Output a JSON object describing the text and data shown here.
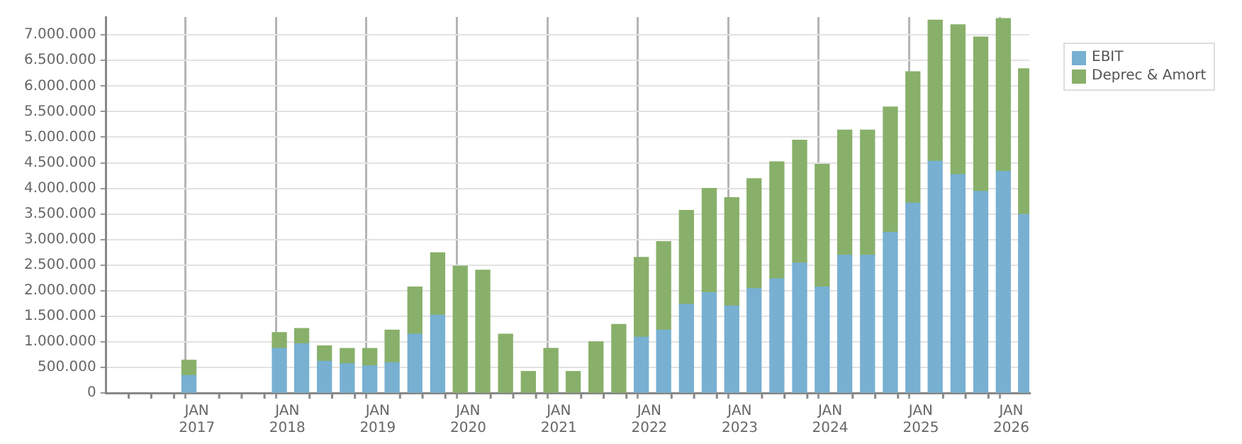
{
  "chart_data": {
    "type": "bar",
    "stacked": true,
    "grid": true,
    "legend": "top right",
    "x": [
      "2016-11-30",
      "2017-11-30",
      "2018-02-28",
      "2018-05-31",
      "2018-08-31",
      "2018-11-30",
      "2019-02-28",
      "2019-05-31",
      "2019-08-31",
      "2019-11-30",
      "2020-02-29",
      "2020-05-31",
      "2020-08-31",
      "2020-11-30",
      "2021-02-28",
      "2021-05-31",
      "2021-08-31",
      "2021-11-30",
      "2022-02-28",
      "2022-05-31",
      "2022-08-31",
      "2022-11-30",
      "2023-02-28",
      "2023-05-31",
      "2023-08-31",
      "2023-11-30",
      "2024-02-29",
      "2024-05-31",
      "2024-08-31",
      "2024-11-30",
      "2025-02-28",
      "2025-05-31",
      "2025-08-31",
      "2025-11-30",
      "2026-02-28"
    ],
    "series": [
      {
        "name": "EBIT",
        "color": "#78b0d2",
        "values": [
          340000,
          870000,
          960000,
          620000,
          570000,
          530000,
          590000,
          1150000,
          1520000,
          null,
          null,
          null,
          null,
          null,
          null,
          null,
          null,
          1090000,
          1230000,
          1730000,
          1960000,
          1700000,
          2040000,
          2230000,
          2540000,
          2070000,
          2690000,
          2690000,
          3140000,
          3710000,
          4530000,
          4270000,
          3940000,
          4330000,
          3490000
        ]
      },
      {
        "name": "Deprec & Amort",
        "color": "#88b06a",
        "values": [
          300000,
          310000,
          300000,
          300000,
          300000,
          340000,
          640000,
          920000,
          1220000,
          2480000,
          2400000,
          1150000,
          420000,
          870000,
          420000,
          1000000,
          1340000,
          1560000,
          1730000,
          1840000,
          2040000,
          2120000,
          2150000,
          2290000,
          2400000,
          2400000,
          2450000,
          2450000,
          2450000,
          2570000,
          2760000,
          2930000,
          3020000,
          2990000,
          2850000
        ]
      }
    ],
    "xlim": [
      "2016-01-01",
      "2026-03-15"
    ],
    "xticks": [
      {
        "value": "2016-04",
        "label": null
      },
      {
        "value": "2016-07",
        "label": null
      },
      {
        "value": "2016-10",
        "label": null
      },
      {
        "value": "2017-01",
        "label": "JAN 2017"
      },
      {
        "value": "2017-04",
        "label": null
      },
      {
        "value": "2017-07",
        "label": null
      },
      {
        "value": "2017-10",
        "label": null
      },
      {
        "value": "2018-01",
        "label": "JAN 2018"
      },
      {
        "value": "2018-04",
        "label": null
      },
      {
        "value": "2018-07",
        "label": null
      },
      {
        "value": "2018-10",
        "label": null
      },
      {
        "value": "2019-01",
        "label": "JAN 2019"
      },
      {
        "value": "2019-04",
        "label": null
      },
      {
        "value": "2019-07",
        "label": null
      },
      {
        "value": "2019-10",
        "label": null
      },
      {
        "value": "2020-01",
        "label": "JAN 2020"
      },
      {
        "value": "2020-04",
        "label": null
      },
      {
        "value": "2020-07",
        "label": null
      },
      {
        "value": "2020-10",
        "label": null
      },
      {
        "value": "2021-01",
        "label": "JAN 2021"
      },
      {
        "value": "2021-04",
        "label": null
      },
      {
        "value": "2021-07",
        "label": null
      },
      {
        "value": "2021-10",
        "label": null
      },
      {
        "value": "2022-01",
        "label": "JAN 2022"
      },
      {
        "value": "2022-04",
        "label": null
      },
      {
        "value": "2022-07",
        "label": null
      },
      {
        "value": "2022-10",
        "label": null
      },
      {
        "value": "2023-01",
        "label": "JAN 2023"
      },
      {
        "value": "2023-04",
        "label": null
      },
      {
        "value": "2023-07",
        "label": null
      },
      {
        "value": "2023-10",
        "label": null
      },
      {
        "value": "2024-01",
        "label": "JAN 2024"
      },
      {
        "value": "2024-04",
        "label": null
      },
      {
        "value": "2024-07",
        "label": null
      },
      {
        "value": "2024-10",
        "label": null
      },
      {
        "value": "2025-01",
        "label": "JAN 2025"
      },
      {
        "value": "2025-04",
        "label": null
      },
      {
        "value": "2025-07",
        "label": null
      },
      {
        "value": "2025-10",
        "label": null
      },
      {
        "value": "2026-01",
        "label": "JAN 2026"
      }
    ],
    "ylim": [
      0,
      7350000
    ],
    "yticks": [
      0,
      {
        "value": 500000,
        "label": "500.000"
      },
      {
        "value": 1000000,
        "label": "1.000.000"
      },
      {
        "value": 1500000,
        "label": "1.500.000"
      },
      {
        "value": 2000000,
        "label": "2.000.000"
      },
      {
        "value": 2500000,
        "label": "2.500.000"
      },
      {
        "value": 3000000,
        "label": "3.000.000"
      },
      {
        "value": 3500000,
        "label": "3.500.000"
      },
      {
        "value": 4000000,
        "label": "4.000.000"
      },
      {
        "value": 4500000,
        "label": "4.500.000"
      },
      {
        "value": 5000000,
        "label": "5.000.000"
      },
      {
        "value": 5500000,
        "label": "5.500.000"
      },
      {
        "value": 6000000,
        "label": "6.000.000"
      },
      {
        "value": 6500000,
        "label": "6.500.000"
      },
      {
        "value": 7000000,
        "label": "7.000.000"
      }
    ]
  }
}
